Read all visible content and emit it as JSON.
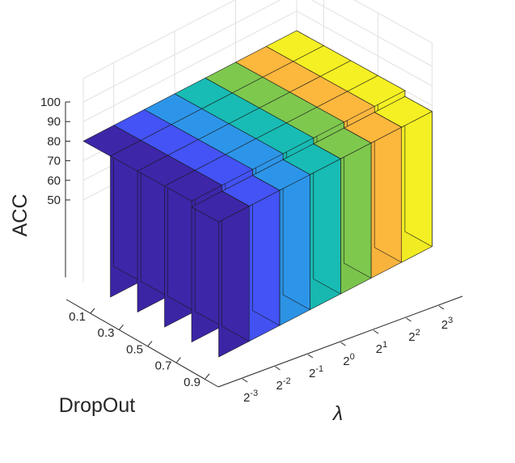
{
  "chart_data": {
    "type": "bar3d",
    "title": "",
    "xlabel": "DropOut",
    "ylabel": "λ",
    "zlabel": "ACC",
    "dropout": [
      "0.1",
      "0.3",
      "0.5",
      "0.7",
      "0.9"
    ],
    "lambda": [
      {
        "base": "2",
        "exp": "-3"
      },
      {
        "base": "2",
        "exp": "-2"
      },
      {
        "base": "2",
        "exp": "-1"
      },
      {
        "base": "2",
        "exp": "0"
      },
      {
        "base": "2",
        "exp": "1"
      },
      {
        "base": "2",
        "exp": "2"
      },
      {
        "base": "2",
        "exp": "3"
      }
    ],
    "zticks": [
      "50",
      "60",
      "70",
      "80",
      "90",
      "100"
    ],
    "zlim": [
      50,
      100
    ],
    "grid": true,
    "colors": [
      "#3d26a8",
      "#4353f5",
      "#2d95e9",
      "#18bcb4",
      "#7ec84e",
      "#fcb73d",
      "#f5f023"
    ],
    "values": [
      [
        80,
        80,
        80,
        80,
        80,
        80,
        80
      ],
      [
        80,
        80,
        80,
        80,
        80,
        80,
        80
      ],
      [
        80,
        80,
        80,
        80,
        80,
        80,
        80
      ],
      [
        80,
        80,
        80,
        80,
        80,
        80,
        80
      ],
      [
        77,
        77,
        77,
        77,
        77,
        77,
        77
      ]
    ]
  }
}
